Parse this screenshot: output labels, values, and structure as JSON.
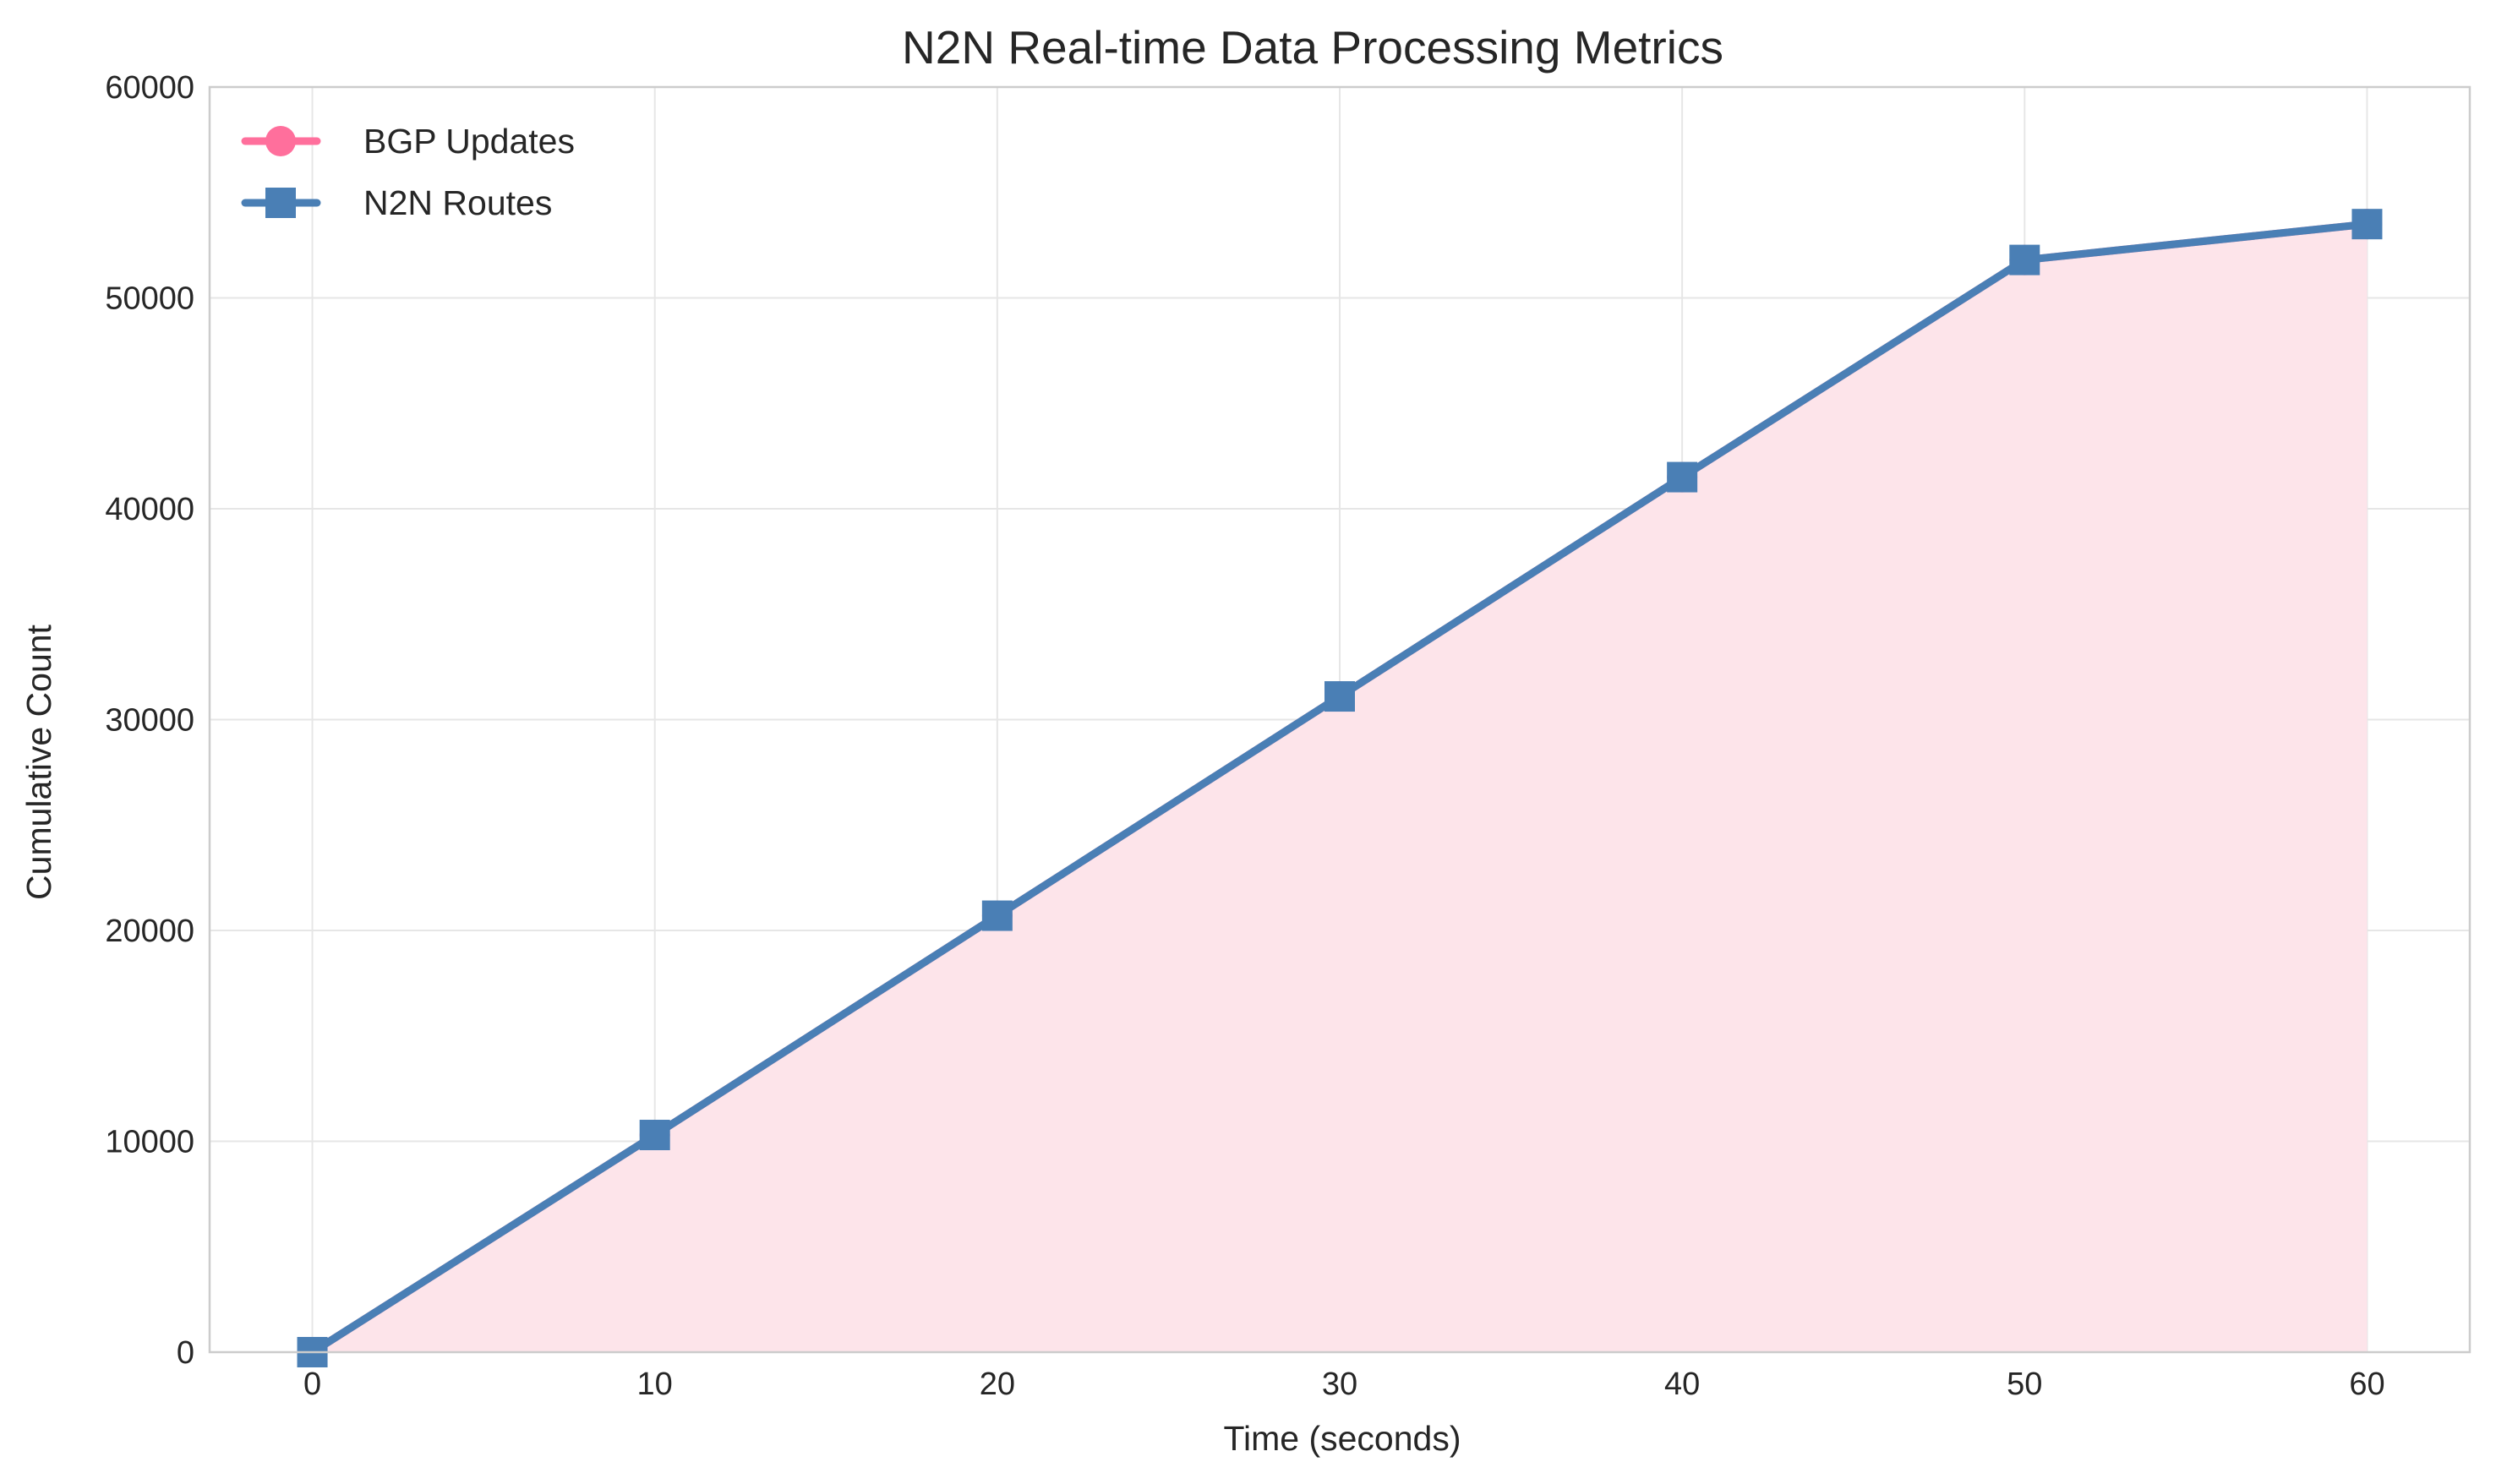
{
  "chart_data": {
    "type": "line",
    "title": "N2N Real-time Data Processing Metrics",
    "xlabel": "Time (seconds)",
    "ylabel": "Cumulative Count",
    "x": [
      0,
      10,
      20,
      30,
      40,
      50,
      60
    ],
    "xlim": [
      -3,
      63
    ],
    "ylim": [
      0,
      60000
    ],
    "xticks": [
      0,
      10,
      20,
      30,
      40,
      50,
      60
    ],
    "yticks": [
      0,
      10000,
      20000,
      30000,
      40000,
      50000,
      60000
    ],
    "grid": true,
    "legend_position": "top-left",
    "series": [
      {
        "name": "BGP Updates",
        "color": "#ff6f9c",
        "marker": "circle",
        "values": [
          0,
          10300,
          20700,
          31100,
          41500,
          51800,
          53500
        ],
        "fill": "#fde4ea"
      },
      {
        "name": "N2N Routes",
        "color": "#4a7fb5",
        "marker": "square",
        "values": [
          0,
          10300,
          20700,
          31100,
          41500,
          51800,
          53500
        ]
      }
    ]
  }
}
